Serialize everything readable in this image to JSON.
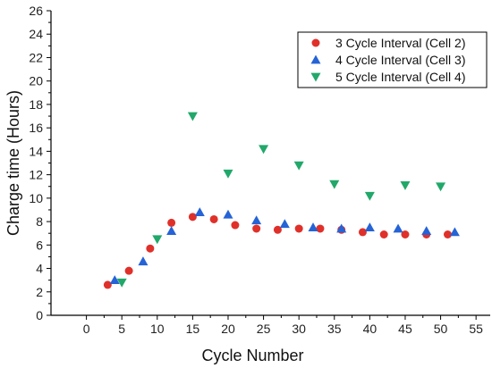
{
  "chart_data": {
    "type": "scatter",
    "xlabel": "Cycle Number",
    "ylabel": "Charge time (Hours)",
    "xlim": [
      -5,
      57
    ],
    "ylim": [
      0,
      26
    ],
    "xticks": [
      0,
      5,
      10,
      15,
      20,
      25,
      30,
      35,
      40,
      45,
      50,
      55
    ],
    "yticks": [
      0,
      2,
      4,
      6,
      8,
      10,
      12,
      14,
      16,
      18,
      20,
      22,
      24,
      26
    ],
    "grid": false,
    "legend_position": "top-right",
    "series": [
      {
        "name": "3 Cycle Interval (Cell 2)",
        "marker": "circle",
        "color": "#e0302a",
        "points": [
          [
            3,
            2.6
          ],
          [
            6,
            3.8
          ],
          [
            9,
            5.7
          ],
          [
            12,
            7.9
          ],
          [
            15,
            8.4
          ],
          [
            18,
            8.2
          ],
          [
            21,
            7.7
          ],
          [
            24,
            7.4
          ],
          [
            27,
            7.3
          ],
          [
            30,
            7.4
          ],
          [
            33,
            7.4
          ],
          [
            36,
            7.3
          ],
          [
            39,
            7.1
          ],
          [
            42,
            6.9
          ],
          [
            45,
            6.9
          ],
          [
            48,
            6.9
          ],
          [
            51,
            6.9
          ]
        ]
      },
      {
        "name": "4 Cycle Interval (Cell 3)",
        "marker": "triangle-up",
        "color": "#2563d6",
        "points": [
          [
            4,
            3.0
          ],
          [
            8,
            4.6
          ],
          [
            12,
            7.2
          ],
          [
            16,
            8.8
          ],
          [
            20,
            8.6
          ],
          [
            24,
            8.1
          ],
          [
            28,
            7.8
          ],
          [
            32,
            7.5
          ],
          [
            36,
            7.4
          ],
          [
            40,
            7.5
          ],
          [
            44,
            7.4
          ],
          [
            48,
            7.2
          ],
          [
            52,
            7.1
          ]
        ]
      },
      {
        "name": "5 Cycle Interval (Cell 4)",
        "marker": "triangle-down",
        "color": "#21a86a",
        "points": [
          [
            5,
            2.8
          ],
          [
            10,
            6.5
          ],
          [
            15,
            17.0
          ],
          [
            20,
            12.1
          ],
          [
            25,
            14.2
          ],
          [
            30,
            12.8
          ],
          [
            35,
            11.2
          ],
          [
            40,
            10.2
          ],
          [
            45,
            11.1
          ],
          [
            50,
            11.0
          ]
        ]
      }
    ]
  }
}
